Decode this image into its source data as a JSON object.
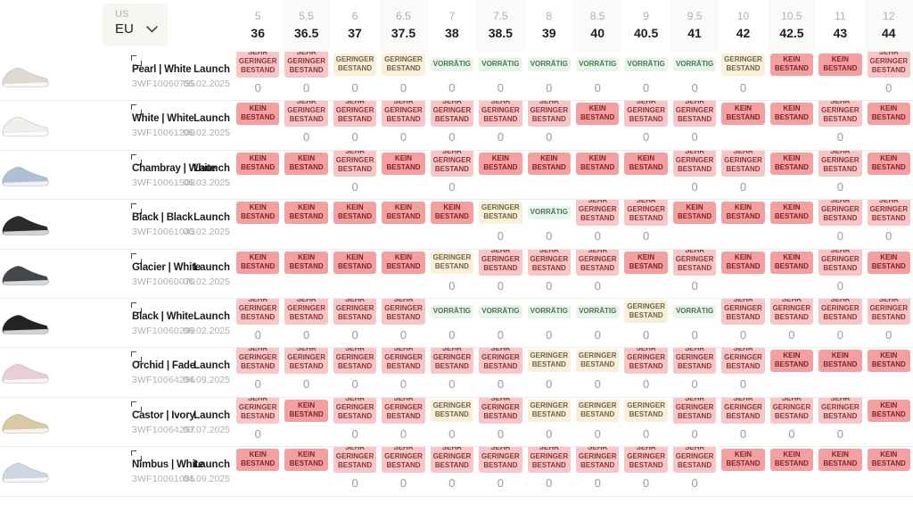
{
  "header": {
    "unit_secondary": "US",
    "unit_selected": "EU",
    "sizes": [
      {
        "us": "5",
        "eu": "36"
      },
      {
        "us": "5.5",
        "eu": "36.5"
      },
      {
        "us": "6",
        "eu": "37"
      },
      {
        "us": "6.5",
        "eu": "37.5"
      },
      {
        "us": "7",
        "eu": "38"
      },
      {
        "us": "7.5",
        "eu": "38.5"
      },
      {
        "us": "8",
        "eu": "39"
      },
      {
        "us": "8.5",
        "eu": "40"
      },
      {
        "us": "9",
        "eu": "40.5"
      },
      {
        "us": "9.5",
        "eu": "41"
      },
      {
        "us": "10",
        "eu": "42"
      },
      {
        "us": "10.5",
        "eu": "42.5"
      },
      {
        "us": "11",
        "eu": "43"
      },
      {
        "us": "12",
        "eu": "44"
      }
    ]
  },
  "statuses": {
    "KB": {
      "label": "KEIN BESTAND",
      "bg": "#f2a0a0",
      "fg": "#8a2126"
    },
    "SGB": {
      "label": "SEHR GERINGER BESTAND",
      "bg": "#f7c7c7",
      "fg": "#933335"
    },
    "GB": {
      "label": "GERINGER BESTAND",
      "bg": "#faefd8",
      "fg": "#6e6647"
    },
    "V": {
      "label": "VORRÄTIG",
      "bg": "#e9f4ea",
      "fg": "#4c7550"
    }
  },
  "products": [
    {
      "name": "Pearl | White",
      "sku": "3WF10060755",
      "launch_label": "Launch",
      "launch_date": "06.02.2025",
      "swatch": "#dedad2",
      "cells": [
        [
          "SGB",
          "0"
        ],
        [
          "SGB",
          "0"
        ],
        [
          "GB",
          "0"
        ],
        [
          "GB",
          "0"
        ],
        [
          "V",
          "0"
        ],
        [
          "V",
          "0"
        ],
        [
          "V",
          "0"
        ],
        [
          "V",
          "0"
        ],
        [
          "V",
          "0"
        ],
        [
          "V",
          "0"
        ],
        [
          "GB",
          "0"
        ],
        [
          "KB",
          ""
        ],
        [
          "KB",
          ""
        ],
        [
          "SGB",
          "0"
        ]
      ]
    },
    {
      "name": "White | White",
      "sku": "3WF10061200",
      "launch_label": "Launch",
      "launch_date": "06.02.2025",
      "swatch": "#f0efec",
      "cells": [
        [
          "KB",
          ""
        ],
        [
          "SGB",
          "0"
        ],
        [
          "SGB",
          "0"
        ],
        [
          "SGB",
          "0"
        ],
        [
          "SGB",
          "0"
        ],
        [
          "SGB",
          "0"
        ],
        [
          "SGB",
          "0"
        ],
        [
          "KB",
          ""
        ],
        [
          "SGB",
          "0"
        ],
        [
          "SGB",
          "0"
        ],
        [
          "KB",
          ""
        ],
        [
          "KB",
          ""
        ],
        [
          "SGB",
          "0"
        ],
        [
          "KB",
          ""
        ]
      ]
    },
    {
      "name": "Chambray | White",
      "sku": "3WF10061508",
      "launch_label": "Launch",
      "launch_date": "06.03.2025",
      "swatch": "#aebfd6",
      "cells": [
        [
          "KB",
          ""
        ],
        [
          "KB",
          ""
        ],
        [
          "SGB",
          "0"
        ],
        [
          "KB",
          ""
        ],
        [
          "SGB",
          "0"
        ],
        [
          "KB",
          ""
        ],
        [
          "KB",
          ""
        ],
        [
          "KB",
          ""
        ],
        [
          "KB",
          ""
        ],
        [
          "SGB",
          "0"
        ],
        [
          "SGB",
          "0"
        ],
        [
          "KB",
          ""
        ],
        [
          "SGB",
          "0"
        ],
        [
          "KB",
          ""
        ]
      ]
    },
    {
      "name": "Black | Black",
      "sku": "3WF10061043",
      "launch_label": "Launch",
      "launch_date": "06.02.2025",
      "swatch": "#2b2b2b",
      "cells": [
        [
          "KB",
          ""
        ],
        [
          "KB",
          ""
        ],
        [
          "KB",
          ""
        ],
        [
          "KB",
          ""
        ],
        [
          "KB",
          ""
        ],
        [
          "GB",
          "0"
        ],
        [
          "V",
          "0"
        ],
        [
          "SGB",
          "0"
        ],
        [
          "SGB",
          "0"
        ],
        [
          "KB",
          ""
        ],
        [
          "KB",
          ""
        ],
        [
          "KB",
          ""
        ],
        [
          "SGB",
          "0"
        ],
        [
          "SGB",
          "0"
        ]
      ]
    },
    {
      "name": "Glacier | White",
      "sku": "3WF10060070",
      "launch_label": "Launch",
      "launch_date": "06.02.2025",
      "swatch": "#43474c",
      "cells": [
        [
          "KB",
          ""
        ],
        [
          "KB",
          ""
        ],
        [
          "KB",
          ""
        ],
        [
          "KB",
          ""
        ],
        [
          "GB",
          "0"
        ],
        [
          "SGB",
          "0"
        ],
        [
          "SGB",
          "0"
        ],
        [
          "SGB",
          "0"
        ],
        [
          "KB",
          ""
        ],
        [
          "SGB",
          "0"
        ],
        [
          "KB",
          ""
        ],
        [
          "KB",
          ""
        ],
        [
          "SGB",
          "0"
        ],
        [
          "KB",
          ""
        ]
      ]
    },
    {
      "name": "Black | White",
      "sku": "3WF10060299",
      "launch_label": "Launch",
      "launch_date": "06.02.2025",
      "swatch": "#232323",
      "cells": [
        [
          "SGB",
          "0"
        ],
        [
          "SGB",
          "0"
        ],
        [
          "SGB",
          "0"
        ],
        [
          "SGB",
          "0"
        ],
        [
          "V",
          "0"
        ],
        [
          "V",
          "0"
        ],
        [
          "V",
          "0"
        ],
        [
          "V",
          "0"
        ],
        [
          "GB",
          "0"
        ],
        [
          "V",
          "0"
        ],
        [
          "SGB",
          "0"
        ],
        [
          "SGB",
          "0"
        ],
        [
          "SGB",
          "0"
        ],
        [
          "SGB",
          "0"
        ]
      ]
    },
    {
      "name": "Orchid | Fade",
      "sku": "3WF10064296",
      "launch_label": "Launch",
      "launch_date": "04.09.2025",
      "swatch": "#e9cdda",
      "cells": [
        [
          "SGB",
          "0"
        ],
        [
          "SGB",
          "0"
        ],
        [
          "SGB",
          "0"
        ],
        [
          "SGB",
          "0"
        ],
        [
          "SGB",
          "0"
        ],
        [
          "SGB",
          "0"
        ],
        [
          "GB",
          "0"
        ],
        [
          "GB",
          "0"
        ],
        [
          "SGB",
          "0"
        ],
        [
          "SGB",
          "0"
        ],
        [
          "SGB",
          "0"
        ],
        [
          "KB",
          ""
        ],
        [
          "KB",
          ""
        ],
        [
          "KB",
          ""
        ]
      ]
    },
    {
      "name": "Castor | Ivory",
      "sku": "3WF10064297",
      "launch_label": "Launch",
      "launch_date": "03.07.2025",
      "swatch": "#d9c9a6",
      "cells": [
        [
          "SGB",
          "0"
        ],
        [
          "KB",
          ""
        ],
        [
          "SGB",
          "0"
        ],
        [
          "SGB",
          "0"
        ],
        [
          "GB",
          "0"
        ],
        [
          "SGB",
          "0"
        ],
        [
          "GB",
          "0"
        ],
        [
          "GB",
          "0"
        ],
        [
          "GB",
          "0"
        ],
        [
          "SGB",
          "0"
        ],
        [
          "SGB",
          "0"
        ],
        [
          "SGB",
          "0"
        ],
        [
          "SGB",
          "0"
        ],
        [
          "KB",
          ""
        ]
      ]
    },
    {
      "name": "Nimbus | White",
      "sku": "3WF10061085",
      "launch_label": "Launch",
      "launch_date": "04.09.2025",
      "swatch": "#cdd7e3",
      "cells": [
        [
          "KB",
          ""
        ],
        [
          "KB",
          ""
        ],
        [
          "SGB",
          "0"
        ],
        [
          "SGB",
          "0"
        ],
        [
          "SGB",
          "0"
        ],
        [
          "SGB",
          "0"
        ],
        [
          "SGB",
          "0"
        ],
        [
          "SGB",
          "0"
        ],
        [
          "SGB",
          "0"
        ],
        [
          "SGB",
          "0"
        ],
        [
          "KB",
          ""
        ],
        [
          "KB",
          ""
        ],
        [
          "KB",
          ""
        ],
        [
          "KB",
          ""
        ]
      ]
    }
  ]
}
